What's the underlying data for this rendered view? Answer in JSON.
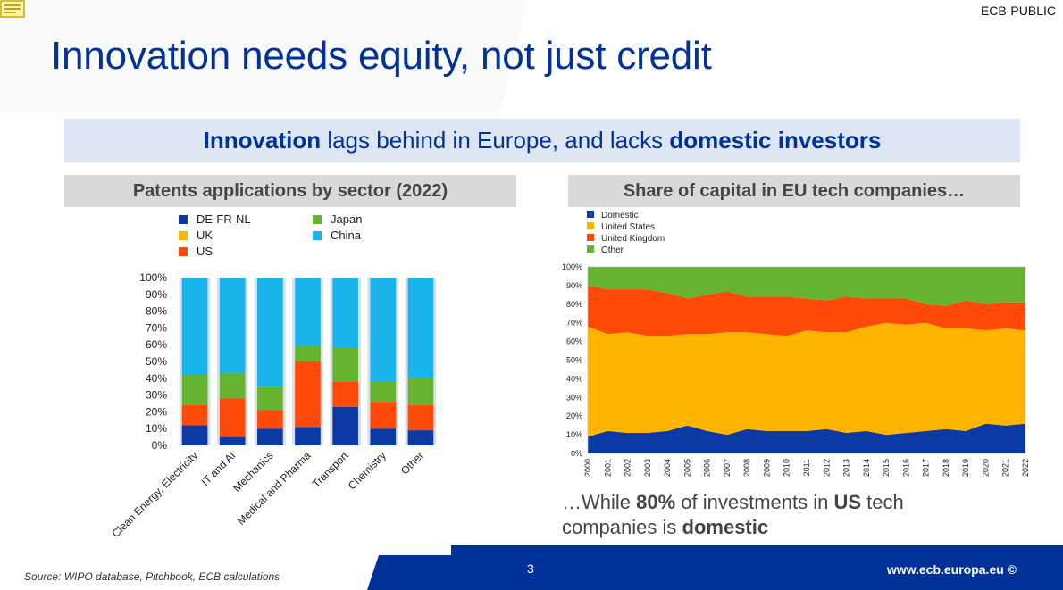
{
  "header": {
    "classification": "ECB-PUBLIC",
    "title": "Innovation needs equity, not just credit"
  },
  "banner": {
    "part1": "Innovation",
    "part2": " lags behind in Europe, and lacks ",
    "part3": "domestic investors"
  },
  "colors": {
    "brand_blue": "#003299",
    "domestic_blue": "#0b3aa5",
    "orange": "#ffb400",
    "red": "#ff4a0a",
    "green": "#65b32e",
    "china_blue": "#1ab4ec",
    "footer_blue": "#003299"
  },
  "chart_data": [
    {
      "type": "bar",
      "stacked": true,
      "title": "Patents applications by sector (2022)",
      "categories": [
        "Clean Energy, Electricity",
        "IT and AI",
        "Mechanics",
        "Medical and Pharma",
        "Transport",
        "Chemistry",
        "Other"
      ],
      "series": [
        {
          "name": "DE-FR-NL",
          "color": "#0b3aa5",
          "values": [
            12,
            5,
            10,
            11,
            23,
            10,
            9
          ]
        },
        {
          "name": "UK",
          "color": "#ffb400",
          "values": [
            0,
            0,
            0,
            0,
            0,
            0,
            0
          ]
        },
        {
          "name": "US",
          "color": "#ff4a0a",
          "values": [
            12,
            23,
            11,
            39,
            15,
            16,
            15
          ]
        },
        {
          "name": "Japan",
          "color": "#65b32e",
          "values": [
            18,
            15,
            14,
            9,
            20,
            12,
            16
          ]
        },
        {
          "name": "China",
          "color": "#1ab4ec",
          "values": [
            58,
            57,
            65,
            41,
            42,
            62,
            60
          ]
        }
      ],
      "yticks": [
        "0%",
        "10%",
        "20%",
        "30%",
        "40%",
        "50%",
        "60%",
        "70%",
        "80%",
        "90%",
        "100%"
      ],
      "ylim": [
        0,
        100
      ],
      "legend": "top"
    },
    {
      "type": "area",
      "stacked": true,
      "title": "Share of capital in EU tech companies…",
      "x": [
        "2000",
        "2001",
        "2002",
        "2003",
        "2004",
        "2005",
        "2006",
        "2007",
        "2008",
        "2009",
        "2010",
        "2011",
        "2012",
        "2013",
        "2014",
        "2015",
        "2016",
        "2017",
        "2018",
        "2019",
        "2020",
        "2021",
        "2022"
      ],
      "series": [
        {
          "name": "Domestic",
          "color": "#0b3aa5",
          "values": [
            9,
            12,
            11,
            11,
            12,
            15,
            12,
            10,
            13,
            12,
            12,
            12,
            13,
            11,
            12,
            10,
            11,
            12,
            13,
            12,
            16,
            15,
            16
          ]
        },
        {
          "name": "United States",
          "color": "#ffb400",
          "values": [
            59,
            52,
            54,
            52,
            51,
            49,
            52,
            55,
            52,
            52,
            51,
            54,
            52,
            54,
            56,
            60,
            58,
            58,
            54,
            55,
            50,
            52,
            50
          ]
        },
        {
          "name": "United Kingdom",
          "color": "#ff4a0a",
          "values": [
            22,
            24,
            23,
            25,
            23,
            19,
            21,
            22,
            19,
            20,
            21,
            17,
            17,
            19,
            15,
            13,
            14,
            10,
            12,
            15,
            14,
            14,
            15
          ]
        },
        {
          "name": "Other",
          "color": "#65b32e",
          "values": [
            10,
            12,
            12,
            12,
            14,
            17,
            15,
            13,
            16,
            16,
            16,
            17,
            18,
            16,
            17,
            17,
            17,
            20,
            21,
            18,
            20,
            19,
            19
          ]
        }
      ],
      "yticks": [
        "0%",
        "10%",
        "20%",
        "30%",
        "40%",
        "50%",
        "60%",
        "70%",
        "80%",
        "90%",
        "100%"
      ],
      "ylim": [
        0,
        100
      ],
      "legend": "top-left"
    }
  ],
  "conclusion": {
    "p1": "…While ",
    "p2": "80%",
    "p3": " of investments in ",
    "p4": "US",
    "p5": " tech companies is ",
    "p6": "domestic"
  },
  "footer": {
    "source": "Source: WIPO database, Pitchbook, ECB calculations",
    "page": "3",
    "url": "www.ecb.europa.eu ©"
  }
}
